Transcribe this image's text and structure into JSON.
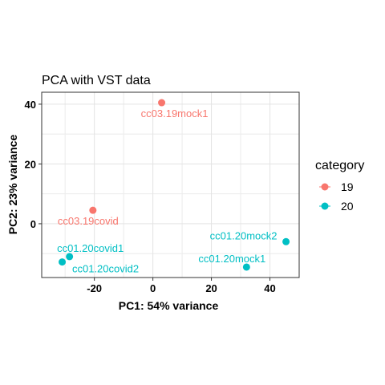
{
  "chart_data": {
    "type": "scatter",
    "title": "PCA with VST data",
    "xlabel": "PC1: 54% variance",
    "ylabel": "PC2: 23% variance",
    "xlim": [
      -38,
      50
    ],
    "ylim": [
      -18,
      44
    ],
    "x_ticks": [
      -20,
      0,
      20,
      40
    ],
    "y_ticks": [
      0,
      20,
      40
    ],
    "x_tick_labels": [
      "-20",
      "0",
      "20",
      "40"
    ],
    "y_tick_labels": [
      "0",
      "20",
      "40"
    ],
    "grid": true,
    "legend": {
      "title": "category",
      "placement": "right",
      "entries": [
        {
          "label": "19",
          "color": "#F8766D"
        },
        {
          "label": "20",
          "color": "#00BFC4"
        }
      ]
    },
    "points": [
      {
        "name": "cc03.19mock1",
        "x": 3,
        "y": 40.5,
        "category": "19"
      },
      {
        "name": "cc03.19covid",
        "x": -20.5,
        "y": 4.5,
        "category": "19"
      },
      {
        "name": "cc01.20mock2",
        "x": 45.5,
        "y": -6,
        "category": "20"
      },
      {
        "name": "cc01.20mock1",
        "x": 32,
        "y": -14.5,
        "category": "20"
      },
      {
        "name": "cc01.20covid1",
        "x": -28.5,
        "y": -11,
        "category": "20"
      },
      {
        "name": "cc01.20covid2",
        "x": -31,
        "y": -12.8,
        "category": "20"
      }
    ]
  }
}
